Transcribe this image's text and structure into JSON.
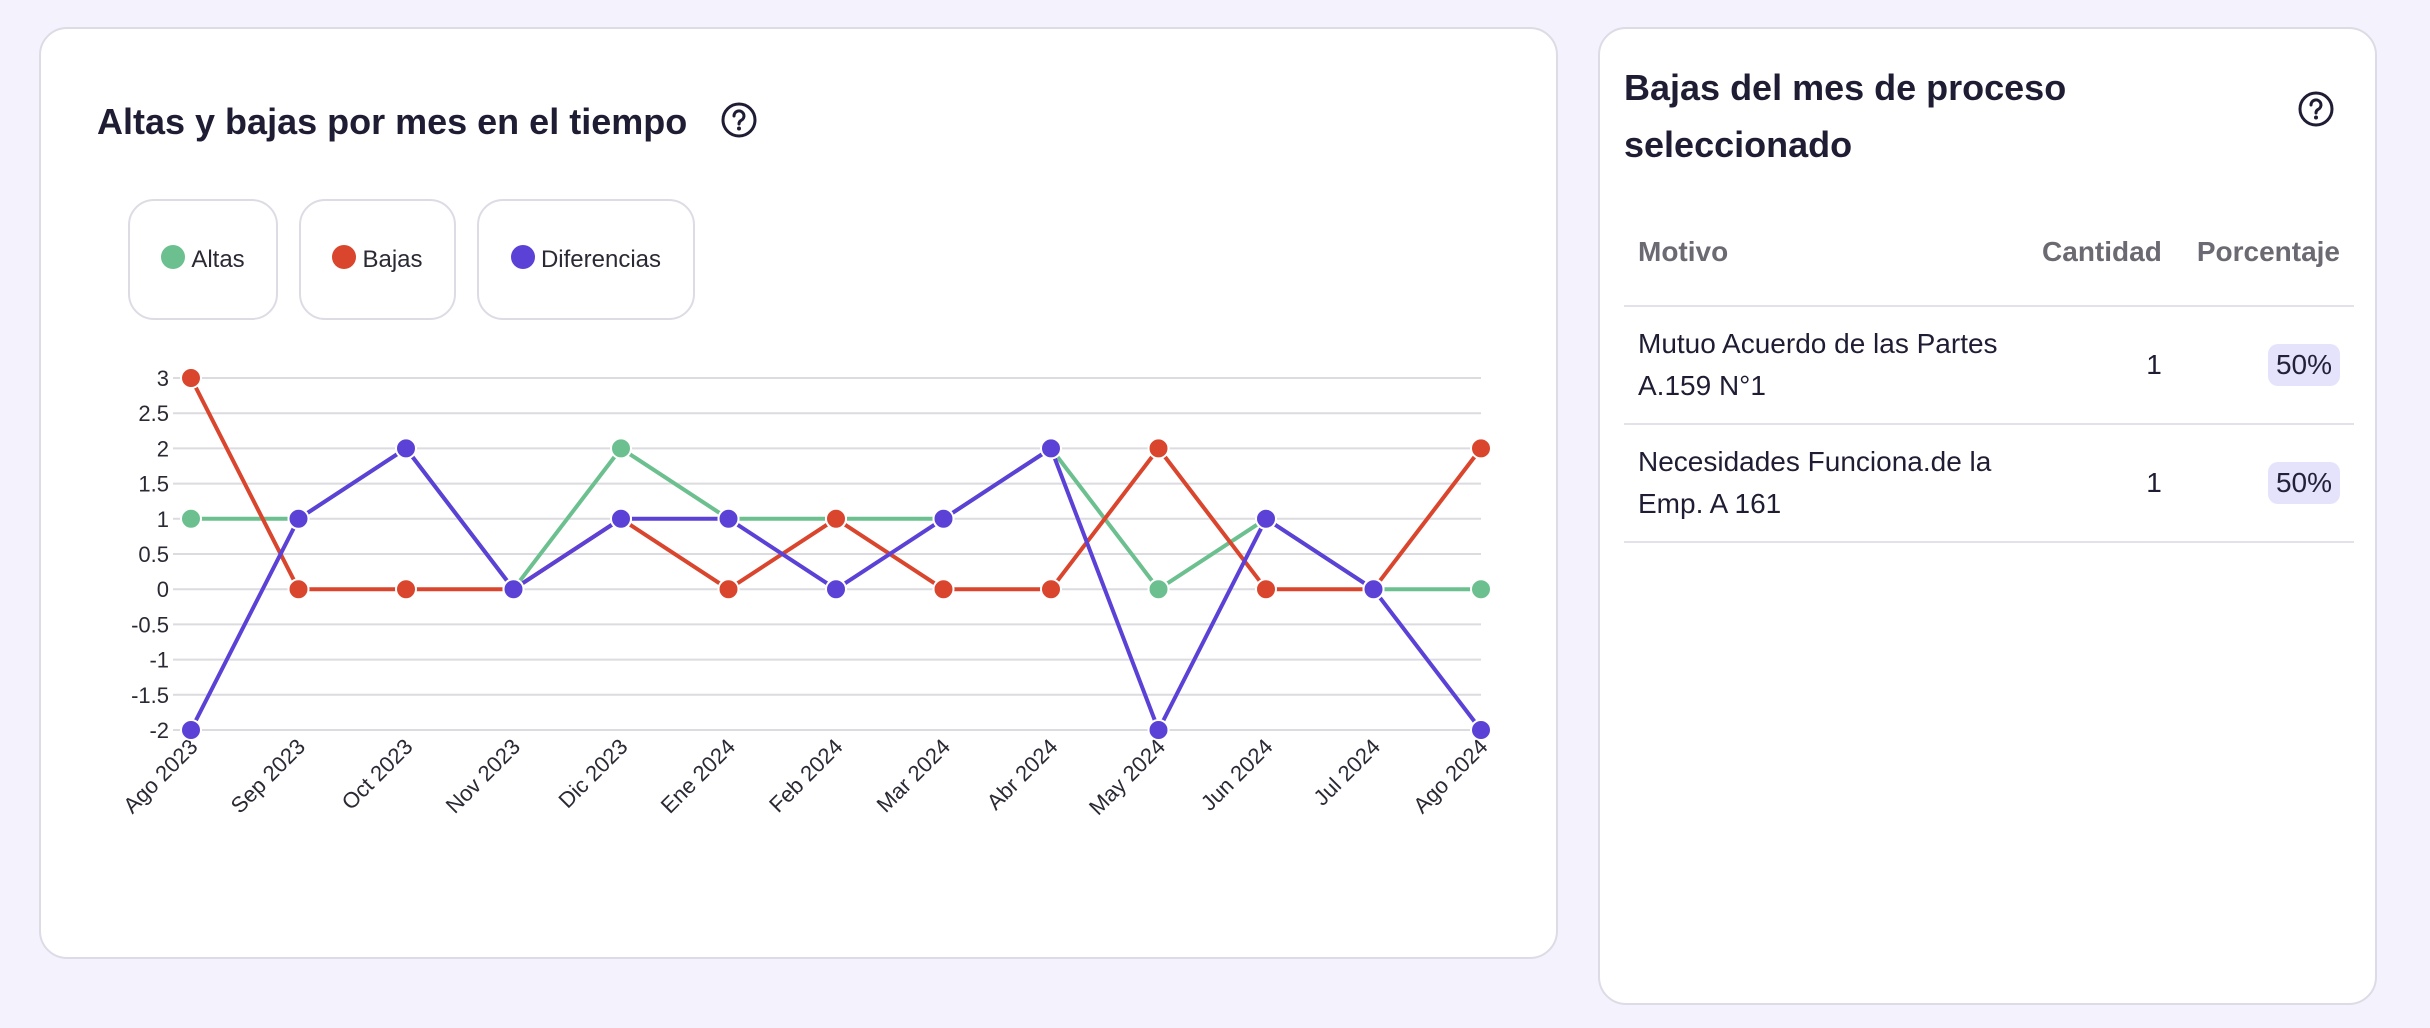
{
  "chart_card": {
    "title": "Altas y bajas por mes en el tiempo",
    "help_icon": "question-circle-icon"
  },
  "legend": [
    {
      "label": "Altas",
      "color": "#6cc08f"
    },
    {
      "label": "Bajas",
      "color": "#d9452d"
    },
    {
      "label": "Diferencias",
      "color": "#5b41d6"
    }
  ],
  "chart_data": {
    "type": "line",
    "title": "Altas y bajas por mes en el tiempo",
    "xlabel": "",
    "ylabel": "",
    "ylim": [
      -2,
      3
    ],
    "yticks": [
      "3",
      "2.5",
      "2",
      "1.5",
      "1",
      "0.5",
      "0",
      "-0.5",
      "-1",
      "-1.5",
      "-2"
    ],
    "ytick_values": [
      3,
      2.5,
      2,
      1.5,
      1,
      0.5,
      0,
      -0.5,
      -1,
      -1.5,
      -2
    ],
    "categories": [
      "Ago 2023",
      "Sep 2023",
      "Oct 2023",
      "Nov 2023",
      "Dic 2023",
      "Ene 2024",
      "Feb 2024",
      "Mar 2024",
      "Abr 2024",
      "May 2024",
      "Jun 2024",
      "Jul 2024",
      "Ago 2024"
    ],
    "series": [
      {
        "name": "Altas",
        "color": "#6cc08f",
        "values": [
          1,
          1,
          2,
          0,
          2,
          1,
          1,
          1,
          2,
          0,
          1,
          0,
          0
        ]
      },
      {
        "name": "Bajas",
        "color": "#d9452d",
        "values": [
          3,
          0,
          0,
          0,
          1,
          0,
          1,
          0,
          0,
          2,
          0,
          0,
          2
        ]
      },
      {
        "name": "Diferencias",
        "color": "#5b41d6",
        "values": [
          -2,
          1,
          2,
          0,
          1,
          1,
          0,
          1,
          2,
          -2,
          1,
          0,
          -2
        ]
      }
    ],
    "grid": true,
    "legend_position": "top-left"
  },
  "table_card": {
    "title": "Bajas del mes de proceso seleccionado",
    "help_icon": "question-circle-icon",
    "columns": [
      "Motivo",
      "Cantidad",
      "Porcentaje"
    ],
    "rows": [
      {
        "motivo": "Mutuo Acuerdo de las Partes A.159 N°1",
        "cantidad": "1",
        "porcentaje": "50%"
      },
      {
        "motivo": "Necesidades Funciona.de la Emp. A 161",
        "cantidad": "1",
        "porcentaje": "50%"
      }
    ]
  }
}
